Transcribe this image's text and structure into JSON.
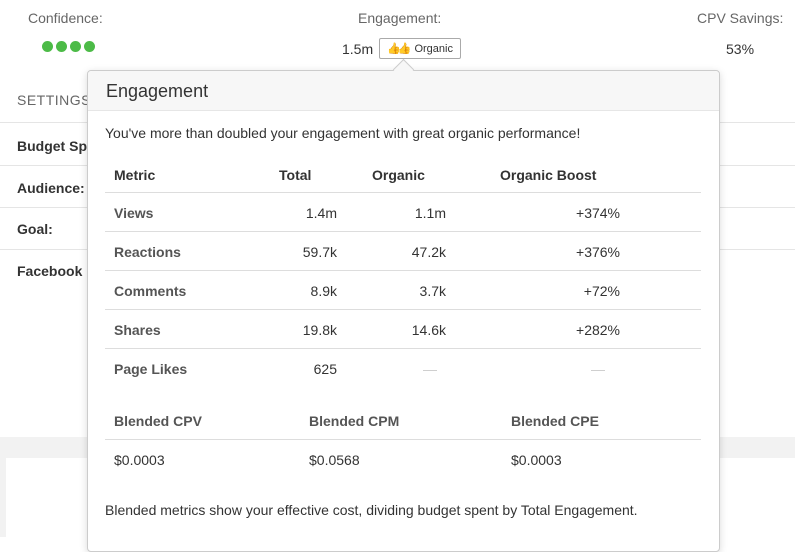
{
  "stats": {
    "confidence_label": "Confidence:",
    "confidence_level": 4,
    "engagement_label": "Engagement:",
    "engagement_value": "1.5m",
    "organic_badge": "Organic",
    "cpv_label": "CPV Savings:",
    "cpv_value": "53%"
  },
  "settings": {
    "title": "SETTINGS",
    "rows": [
      "Budget Sp",
      "Audience:",
      "Goal:",
      "Facebook"
    ]
  },
  "popover": {
    "title": "Engagement",
    "intro": "You've more than doubled your engagement with great organic performance!",
    "metrics_headers": [
      "Metric",
      "Total",
      "Organic",
      "Organic Boost"
    ],
    "metrics": [
      {
        "metric": "Views",
        "total": "1.4m",
        "organic": "1.1m",
        "boost": "+374%"
      },
      {
        "metric": "Reactions",
        "total": "59.7k",
        "organic": "47.2k",
        "boost": "+376%"
      },
      {
        "metric": "Comments",
        "total": "8.9k",
        "organic": "3.7k",
        "boost": "+72%"
      },
      {
        "metric": "Shares",
        "total": "19.8k",
        "organic": "14.6k",
        "boost": "+282%"
      },
      {
        "metric": "Page Likes",
        "total": "625",
        "organic": "—",
        "boost": "—"
      }
    ],
    "blended_headers": [
      "Blended CPV",
      "Blended CPM",
      "Blended CPE"
    ],
    "blended_values": [
      "$0.0003",
      "$0.0568",
      "$0.0003"
    ],
    "footer": "Blended metrics show your effective cost, dividing budget spent by Total Engagement."
  }
}
